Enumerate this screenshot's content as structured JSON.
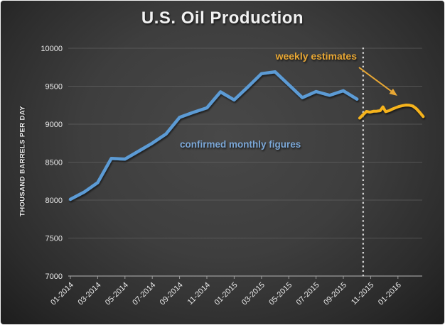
{
  "slide": {
    "title": "U.S. Oil Production"
  },
  "colors": {
    "background_center": "#484848",
    "background_edge": "#1d1d1d",
    "title_text": "#f2f2f2",
    "tick_text": "#e9e9e9",
    "gridline": "#6e6e6e",
    "axis_line": "#9c9c9c",
    "divider_dotted_line": "#cfcfcf",
    "monthly_line": "#5b9bd5",
    "weekly_line": "#f5b31d",
    "monthly_label_text": "#7ba7d7",
    "weekly_label_text": "#e8a734"
  },
  "chart_data": {
    "type": "line",
    "title": "U.S. Oil Production",
    "xlabel": "",
    "ylabel": "THOUSAND BARRELS PER DAY",
    "ylim": [
      7000,
      10000
    ],
    "yticks": [
      7000,
      7500,
      8000,
      8500,
      9000,
      9500,
      10000
    ],
    "grid": "horizontal",
    "legend": "none (inline text annotations)",
    "x_unit": "months since 2014-01",
    "xticks": [
      {
        "m": 0,
        "label": "01-2014"
      },
      {
        "m": 2,
        "label": "03-2014"
      },
      {
        "m": 4,
        "label": "05-2014"
      },
      {
        "m": 6,
        "label": "07-2014"
      },
      {
        "m": 8,
        "label": "09-2014"
      },
      {
        "m": 10,
        "label": "11-2014"
      },
      {
        "m": 12,
        "label": "01-2015"
      },
      {
        "m": 14,
        "label": "03-2015"
      },
      {
        "m": 16,
        "label": "05-2015"
      },
      {
        "m": 18,
        "label": "07-2015"
      },
      {
        "m": 20,
        "label": "09-2015"
      },
      {
        "m": 22,
        "label": "11-2015"
      },
      {
        "m": 24,
        "label": "01-2016"
      }
    ],
    "divider": {
      "month": 21.45,
      "style": "dotted-vertical"
    },
    "series": [
      {
        "name": "confirmed monthly figures",
        "cadence": "monthly",
        "color": "#5b9bd5",
        "points": [
          [
            0,
            8010
          ],
          [
            1,
            8105
          ],
          [
            2,
            8230
          ],
          [
            3,
            8550
          ],
          [
            4,
            8540
          ],
          [
            5,
            8645
          ],
          [
            6,
            8750
          ],
          [
            7,
            8870
          ],
          [
            8,
            9090
          ],
          [
            9,
            9155
          ],
          [
            10,
            9215
          ],
          [
            11,
            9425
          ],
          [
            12,
            9320
          ],
          [
            13,
            9490
          ],
          [
            14,
            9665
          ],
          [
            15,
            9690
          ],
          [
            16,
            9520
          ],
          [
            17,
            9350
          ],
          [
            18,
            9430
          ],
          [
            19,
            9380
          ],
          [
            20,
            9440
          ],
          [
            21,
            9330
          ]
        ]
      },
      {
        "name": "weekly estimates",
        "cadence": "weekly",
        "color": "#f5b31d",
        "points": [
          [
            21.2,
            9080
          ],
          [
            21.45,
            9125
          ],
          [
            21.7,
            9168
          ],
          [
            21.95,
            9158
          ],
          [
            22.2,
            9170
          ],
          [
            22.45,
            9172
          ],
          [
            22.7,
            9178
          ],
          [
            22.9,
            9228
          ],
          [
            23.1,
            9165
          ],
          [
            23.35,
            9178
          ],
          [
            23.6,
            9200
          ],
          [
            23.85,
            9218
          ],
          [
            24.1,
            9235
          ],
          [
            24.35,
            9245
          ],
          [
            24.6,
            9252
          ],
          [
            24.85,
            9250
          ],
          [
            25.1,
            9238
          ],
          [
            25.35,
            9205
          ],
          [
            25.6,
            9155
          ],
          [
            25.85,
            9100
          ]
        ]
      }
    ],
    "annotations": [
      {
        "text": "confirmed monthly figures",
        "series": "monthly",
        "color": "#7ba7d7"
      },
      {
        "text": "weekly estimates",
        "series": "weekly",
        "color": "#e8a734",
        "arrow_points_to": "start of weekly line"
      }
    ]
  }
}
